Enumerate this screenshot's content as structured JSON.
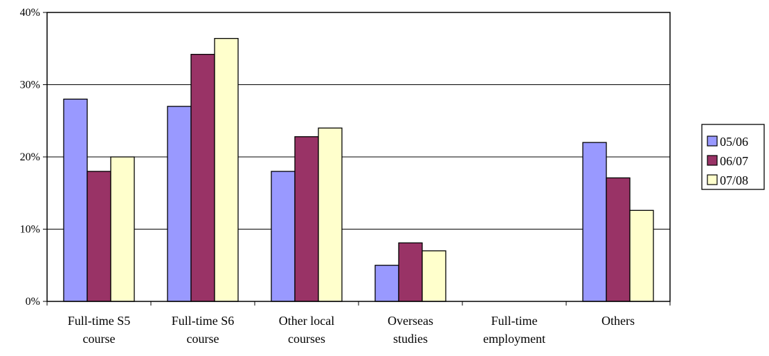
{
  "chart_data": {
    "type": "bar",
    "categories": [
      [
        "Full-time S5",
        "course"
      ],
      [
        "Full-time S6",
        "course"
      ],
      [
        "Other local",
        "courses"
      ],
      [
        "Overseas",
        "studies"
      ],
      [
        "Full-time",
        "employment"
      ],
      [
        "Others"
      ]
    ],
    "series": [
      {
        "name": "05/06",
        "color": "#9999ff",
        "values": [
          28,
          27,
          18,
          5,
          0,
          22
        ]
      },
      {
        "name": "06/07",
        "color": "#993366",
        "values": [
          18,
          34.2,
          22.8,
          8.1,
          0,
          17.1
        ]
      },
      {
        "name": "07/08",
        "color": "#ffffcc",
        "values": [
          20,
          36.4,
          24,
          7,
          0,
          12.6
        ]
      }
    ],
    "ylim": [
      0,
      40
    ],
    "yticks": [
      0,
      10,
      20,
      30,
      40
    ],
    "ytick_labels": [
      "0%",
      "10%",
      "20%",
      "30%",
      "40%"
    ],
    "grid": true,
    "legend_position": "right"
  }
}
